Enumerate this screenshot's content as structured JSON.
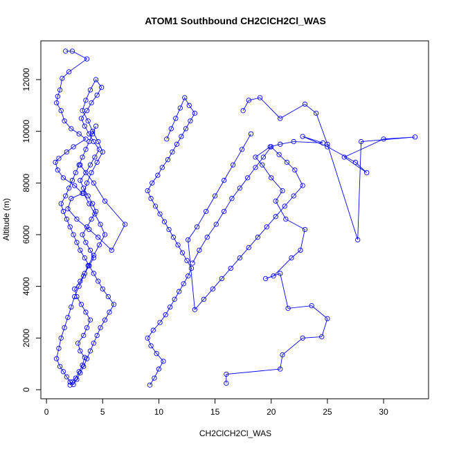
{
  "chart_data": {
    "type": "line",
    "title": "ATOM1 Southbound CH2ClCH2Cl_WAS",
    "xlabel": "CH2ClCH2Cl_WAS",
    "ylabel": "Altitude (m)",
    "xlim": [
      -0.5,
      34
    ],
    "ylim": [
      -350,
      13500
    ],
    "xticks": [
      0,
      5,
      10,
      15,
      20,
      25,
      30
    ],
    "yticks": [
      0,
      2000,
      4000,
      6000,
      8000,
      10000,
      12000
    ],
    "grid": false,
    "legend": "none",
    "marker": "open-circle",
    "color": "#0000ff",
    "series": [
      {
        "x": [
          2.1,
          2.3,
          2.6,
          2.9,
          3.2,
          3.4,
          3.0,
          2.8,
          3.3,
          3.6,
          3.9,
          3.5,
          3.1,
          2.7,
          2.5,
          3.0,
          3.4,
          3.8,
          4.2,
          3.9,
          3.5,
          3.2,
          3.6,
          4.0,
          4.4,
          4.1,
          3.7,
          3.3,
          3.0,
          3.5,
          3.9,
          4.3,
          4.7,
          4.2,
          3.8,
          3.4,
          3.1,
          3.6,
          4.0,
          4.5,
          4.9,
          4.4,
          3.9,
          3.5,
          3.2,
          3.7,
          4.1,
          4.6,
          5.0,
          4.5,
          4.0,
          3.6,
          3.3,
          3.8,
          4.3,
          4.8,
          5.2,
          4.7,
          4.2,
          3.7,
          3.3,
          2.9,
          2.5,
          2.2,
          1.9,
          1.6,
          1.3,
          1.1,
          0.9,
          1.2,
          1.5,
          1.8,
          2.1,
          2.4,
          2.7,
          3.0,
          3.3,
          3.6,
          3.9,
          4.2,
          4.5,
          4.8,
          5.2,
          5.6,
          6.0,
          5.5,
          5.0,
          4.6,
          4.2,
          3.8,
          3.4,
          3.0,
          2.7,
          2.4,
          2.1,
          1.8,
          1.5,
          1.3,
          1.7,
          2.0,
          2.3,
          2.6,
          2.9,
          3.2,
          3.5,
          3.8,
          4.1,
          4.4
        ],
        "y": [
          180,
          300,
          450,
          700,
          950,
          1250,
          1500,
          1800,
          2100,
          2400,
          2700,
          3000,
          3300,
          3600,
          3900,
          4200,
          4500,
          4800,
          5100,
          5400,
          5700,
          6000,
          6300,
          6600,
          6900,
          7200,
          7500,
          7800,
          8100,
          8400,
          8700,
          9000,
          9300,
          9600,
          9900,
          10200,
          10500,
          10800,
          11100,
          11400,
          11700,
          12000,
          11600,
          11200,
          10800,
          10400,
          10000,
          9600,
          9200,
          8800,
          8400,
          8000,
          7600,
          7200,
          6800,
          6400,
          6000,
          5600,
          5200,
          4800,
          4400,
          4000,
          3600,
          3200,
          2800,
          2400,
          2000,
          1600,
          1200,
          900,
          700,
          500,
          300,
          200,
          400,
          650,
          900,
          1200,
          1500,
          1800,
          2100,
          2400,
          2700,
          3000,
          3300,
          3600,
          3900,
          4200,
          4500,
          4800,
          5100,
          5400,
          5700,
          6000,
          6300,
          6600,
          6900,
          7200,
          7500,
          7800,
          8100,
          8400,
          8700,
          9000,
          9300,
          9600,
          9900,
          10200
        ]
      },
      {
        "x": [
          1.7,
          2.3,
          3.6,
          2.0,
          1.4,
          1.2,
          1.0,
          0.9,
          1.3,
          1.6,
          2.2,
          2.9,
          3.5,
          2.4,
          1.8,
          1.1,
          0.8,
          1.0,
          1.5,
          2.5,
          3.2,
          2.2,
          1.9,
          2.7,
          3.8,
          4.6,
          5.8,
          7.0,
          5.2,
          4.2,
          3.0
        ],
        "y": [
          13100,
          13100,
          12800,
          12300,
          12050,
          11600,
          11350,
          11100,
          10800,
          10400,
          10100,
          9900,
          9700,
          9400,
          9200,
          8950,
          8800,
          8500,
          8200,
          7900,
          7600,
          7400,
          7000,
          6600,
          6200,
          5900,
          5400,
          6400,
          7300,
          8000,
          8700
        ]
      },
      {
        "x": [
          9.2,
          9.6,
          10.0,
          10.4,
          9.8,
          9.3,
          9.0,
          9.5,
          10.1,
          10.6,
          11.0,
          11.4,
          11.8,
          12.2,
          12.6,
          12.9,
          12.5,
          12.1,
          11.7,
          11.3,
          10.9,
          10.5,
          10.1,
          9.7,
          9.3,
          9.0,
          9.4,
          9.9,
          10.3,
          10.8,
          11.2,
          11.6,
          12.0,
          12.4,
          12.8,
          13.2,
          12.7,
          12.3,
          11.9,
          11.5,
          11.1,
          10.7
        ],
        "y": [
          180,
          450,
          800,
          1100,
          1400,
          1700,
          2000,
          2300,
          2600,
          2900,
          3200,
          3500,
          3800,
          4100,
          4400,
          4700,
          5000,
          5300,
          5600,
          5900,
          6200,
          6500,
          6800,
          7100,
          7400,
          7700,
          8000,
          8300,
          8600,
          8900,
          9200,
          9500,
          9800,
          10100,
          10400,
          10700,
          11000,
          11300,
          10900,
          10500,
          10100,
          9700
        ]
      },
      {
        "x": [
          16.0,
          16.0,
          20.8,
          21.0,
          22.8,
          24.5,
          25.0,
          23.6,
          21.5,
          20.8,
          19.5,
          20.2,
          21.8,
          22.6,
          23.0,
          21.3,
          20.4,
          21.0,
          20.0,
          19.2,
          18.6,
          19.9,
          20.8,
          22.0,
          24.6,
          22.8,
          25.0,
          27.5,
          28.5,
          26.5,
          30.0,
          32.8,
          28.0,
          27.7,
          25.0,
          24.0,
          23.0,
          20.8,
          19.0,
          18.0,
          17.5
        ],
        "y": [
          250,
          600,
          800,
          1350,
          2000,
          2050,
          2750,
          3250,
          3150,
          4500,
          4300,
          4400,
          5100,
          5400,
          6200,
          6600,
          7300,
          7700,
          8200,
          8700,
          9000,
          9400,
          9500,
          9600,
          9550,
          9800,
          9400,
          8800,
          8400,
          9000,
          9700,
          9780,
          9600,
          5800,
          9500,
          10700,
          11050,
          10500,
          11300,
          11200,
          10800
        ]
      },
      {
        "x": [
          13.0,
          13.6,
          14.3,
          15.1,
          15.8,
          16.5,
          17.2,
          17.9,
          18.6,
          19.3,
          20.0,
          20.7,
          21.4,
          22.1,
          22.8,
          22.0,
          21.2,
          20.4,
          19.6,
          18.8,
          18.0,
          17.2,
          16.4,
          15.6,
          14.8,
          14.0,
          13.2,
          12.6,
          13.4,
          14.2,
          15.0,
          15.8,
          16.6,
          17.4,
          18.2
        ],
        "y": [
          4900,
          5400,
          5900,
          6400,
          6900,
          7400,
          7800,
          8200,
          8600,
          9000,
          9400,
          9100,
          8800,
          8500,
          7900,
          7500,
          7100,
          6700,
          6300,
          5900,
          5500,
          5100,
          4700,
          4300,
          3900,
          3500,
          3100,
          5800,
          6300,
          6900,
          7500,
          8100,
          8700,
          9300,
          9900
        ]
      }
    ]
  }
}
